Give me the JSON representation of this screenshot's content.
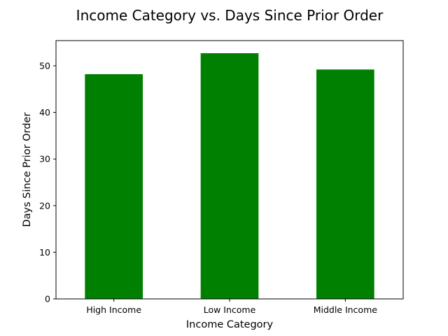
{
  "chart_data": {
    "type": "bar",
    "title": "Income Category vs. Days Since Prior Order",
    "xlabel": "Income Category",
    "ylabel": "Days Since Prior Order",
    "categories": [
      "High Income",
      "Low Income",
      "Middle Income"
    ],
    "values": [
      48.2,
      52.7,
      49.2
    ],
    "ylim": [
      0,
      55.4
    ],
    "yticks": [
      0,
      10,
      20,
      30,
      40,
      50
    ],
    "grid": false,
    "legend": "none",
    "bar_color": "#008000"
  }
}
